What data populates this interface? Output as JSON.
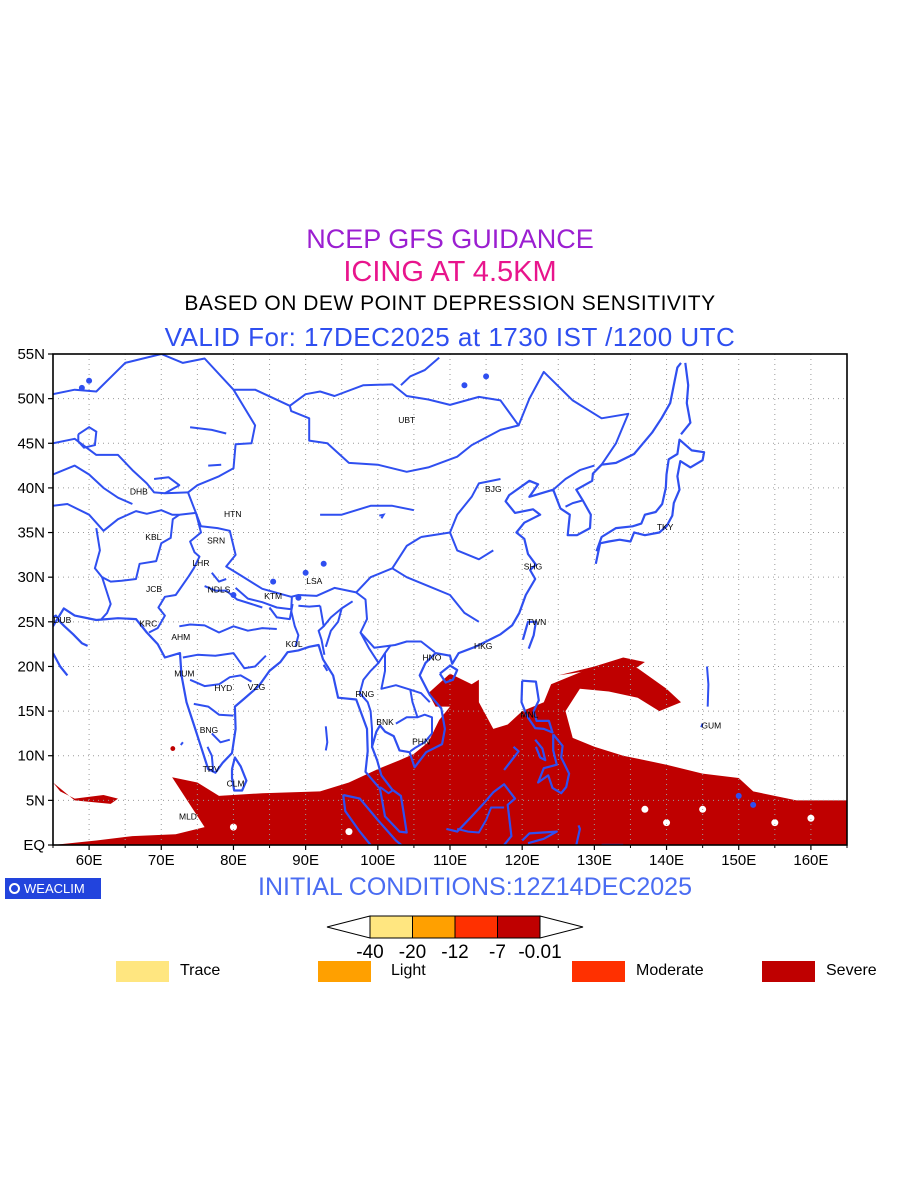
{
  "header": {
    "title": "NCEP GFS GUIDANCE",
    "subtitle": "ICING AT 4.5KM",
    "method": "BASED ON DEW POINT DEPRESSION SENSITIVITY",
    "valid": "VALID For: 17DEC2025 at 1730 IST /1200 UTC",
    "title_color": "#9b1fd1",
    "subtitle_color": "#e8158c",
    "valid_color": "#2f4ff0"
  },
  "map": {
    "lon_range": [
      55,
      165
    ],
    "lat_range": [
      0,
      55
    ],
    "lat_ticks": [
      "EQ",
      "5N",
      "10N",
      "15N",
      "20N",
      "25N",
      "30N",
      "35N",
      "40N",
      "45N",
      "50N",
      "55N"
    ],
    "lon_ticks": [
      "60E",
      "70E",
      "80E",
      "90E",
      "100E",
      "110E",
      "120E",
      "130E",
      "140E",
      "150E",
      "160E"
    ],
    "gridlines": true,
    "coastline_color": "#2f4ff0",
    "severe_color": "#bf0000",
    "stations": [
      {
        "code": "UBT",
        "lon": 104.0,
        "lat": 47.6
      },
      {
        "code": "BJG",
        "lon": 116.0,
        "lat": 39.9
      },
      {
        "code": "TKY",
        "lon": 139.8,
        "lat": 35.6
      },
      {
        "code": "DHB",
        "lon": 66.9,
        "lat": 39.6
      },
      {
        "code": "HTN",
        "lon": 79.9,
        "lat": 37.1
      },
      {
        "code": "KBL",
        "lon": 68.9,
        "lat": 34.5
      },
      {
        "code": "SRN",
        "lon": 77.6,
        "lat": 34.1
      },
      {
        "code": "LHR",
        "lon": 75.5,
        "lat": 31.6
      },
      {
        "code": "LSA",
        "lon": 91.2,
        "lat": 29.6
      },
      {
        "code": "SHG",
        "lon": 121.5,
        "lat": 31.2
      },
      {
        "code": "JCB",
        "lon": 69.0,
        "lat": 28.7
      },
      {
        "code": "NDLS",
        "lon": 78.0,
        "lat": 28.6
      },
      {
        "code": "KTM",
        "lon": 85.5,
        "lat": 27.9
      },
      {
        "code": "DUB",
        "lon": 56.3,
        "lat": 25.2
      },
      {
        "code": "KRC",
        "lon": 68.2,
        "lat": 24.8
      },
      {
        "code": "TWN",
        "lon": 122.0,
        "lat": 25.0
      },
      {
        "code": "AHM",
        "lon": 72.7,
        "lat": 23.3
      },
      {
        "code": "KOL",
        "lon": 88.4,
        "lat": 22.5
      },
      {
        "code": "HKG",
        "lon": 114.6,
        "lat": 22.3
      },
      {
        "code": "HNO",
        "lon": 107.5,
        "lat": 21.0
      },
      {
        "code": "MUM",
        "lon": 73.2,
        "lat": 19.2
      },
      {
        "code": "HYD",
        "lon": 78.6,
        "lat": 17.6
      },
      {
        "code": "VZG",
        "lon": 83.2,
        "lat": 17.7
      },
      {
        "code": "RNG",
        "lon": 98.2,
        "lat": 16.9
      },
      {
        "code": "BNK",
        "lon": 101.0,
        "lat": 13.8
      },
      {
        "code": "MNL",
        "lon": 121.0,
        "lat": 14.6
      },
      {
        "code": "GUM",
        "lon": 146.2,
        "lat": 13.4
      },
      {
        "code": "BNG",
        "lon": 76.6,
        "lat": 12.9
      },
      {
        "code": "PHN",
        "lon": 106.0,
        "lat": 11.6
      },
      {
        "code": "TRV",
        "lon": 76.9,
        "lat": 8.5
      },
      {
        "code": "CLM",
        "lon": 80.3,
        "lat": 6.9
      },
      {
        "code": "MLD",
        "lon": 73.7,
        "lat": 3.2
      }
    ]
  },
  "footer": {
    "logo_text": "WEACLIM",
    "initial_conditions": "INITIAL CONDITIONS:12Z14DEC2025",
    "initial_color": "#4a6cf2"
  },
  "colorbar": {
    "labels": [
      "-40",
      "-20",
      "-12",
      "-7",
      "-0.01"
    ],
    "colors": [
      "#ffe680",
      "#ffa000",
      "#ff3000",
      "#bf0000"
    ]
  },
  "legend": [
    {
      "label": "Trace",
      "color": "#ffe680"
    },
    {
      "label": "Light",
      "color": "#ffa000"
    },
    {
      "label": "Moderate",
      "color": "#ff3000"
    },
    {
      "label": "Severe",
      "color": "#bf0000"
    }
  ]
}
